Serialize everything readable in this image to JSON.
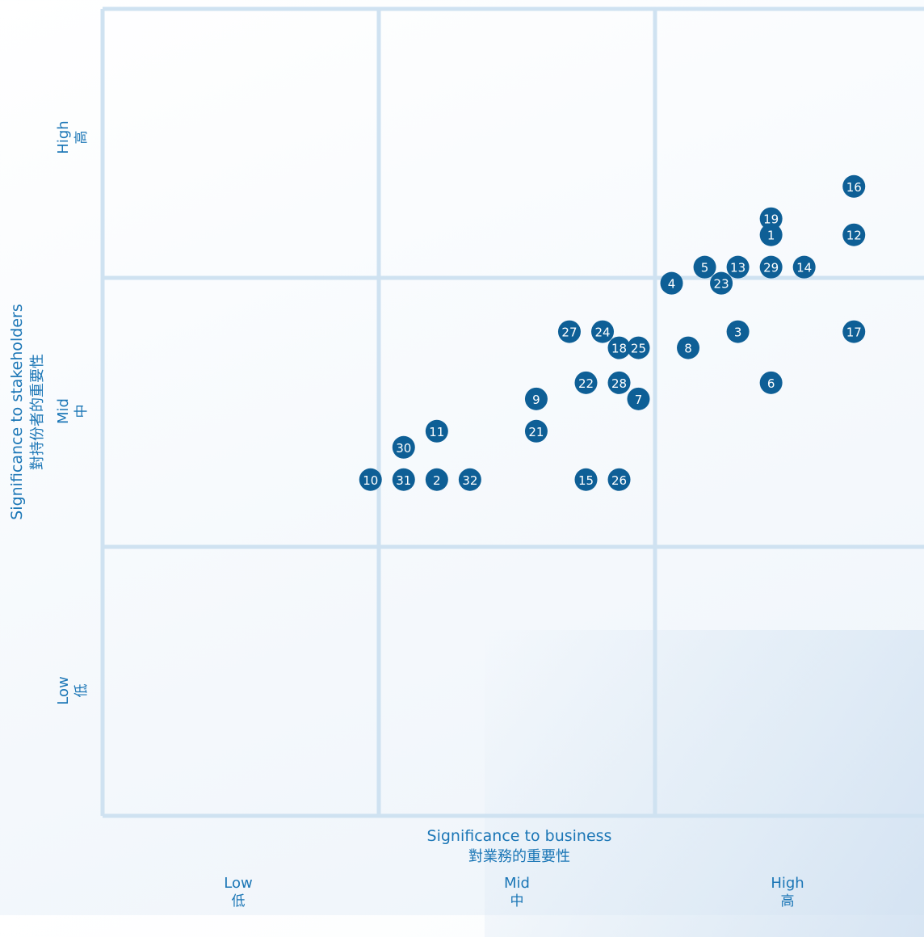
{
  "chart_data": {
    "type": "scatter",
    "xlabel": "Significance to business",
    "xlabel_zh": "對業務的重要性",
    "ylabel": "Significance to stakeholders",
    "ylabel_zh": "對持份者的重要性",
    "xlim": [
      0,
      3
    ],
    "ylim": [
      0,
      3
    ],
    "grid": true,
    "x_ticks": [
      {
        "en": "Low",
        "zh": "低"
      },
      {
        "en": "Mid",
        "zh": "中"
      },
      {
        "en": "High",
        "zh": "高"
      }
    ],
    "y_ticks": [
      {
        "en": "Low",
        "zh": "低"
      },
      {
        "en": "Mid",
        "zh": "中"
      },
      {
        "en": "High",
        "zh": "高"
      }
    ],
    "marker_color": "#0e5f96",
    "grid_color": "#cfe2f1",
    "points": [
      {
        "label": "1",
        "x": 2.42,
        "y": 2.16
      },
      {
        "label": "2",
        "x": 1.21,
        "y": 1.25
      },
      {
        "label": "3",
        "x": 2.3,
        "y": 1.8
      },
      {
        "label": "4",
        "x": 2.06,
        "y": 1.98
      },
      {
        "label": "5",
        "x": 2.18,
        "y": 2.04
      },
      {
        "label": "6",
        "x": 2.42,
        "y": 1.61
      },
      {
        "label": "7",
        "x": 1.94,
        "y": 1.55
      },
      {
        "label": "8",
        "x": 2.12,
        "y": 1.74
      },
      {
        "label": "9",
        "x": 1.57,
        "y": 1.55
      },
      {
        "label": "10",
        "x": 0.97,
        "y": 1.25
      },
      {
        "label": "11",
        "x": 1.21,
        "y": 1.43
      },
      {
        "label": "12",
        "x": 2.72,
        "y": 2.16
      },
      {
        "label": "13",
        "x": 2.3,
        "y": 2.04
      },
      {
        "label": "14",
        "x": 2.54,
        "y": 2.04
      },
      {
        "label": "15",
        "x": 1.75,
        "y": 1.25
      },
      {
        "label": "16",
        "x": 2.72,
        "y": 2.34
      },
      {
        "label": "17",
        "x": 2.72,
        "y": 1.8
      },
      {
        "label": "18",
        "x": 1.87,
        "y": 1.74
      },
      {
        "label": "19",
        "x": 2.42,
        "y": 2.22
      },
      {
        "label": "21",
        "x": 1.57,
        "y": 1.43
      },
      {
        "label": "22",
        "x": 1.75,
        "y": 1.61
      },
      {
        "label": "23",
        "x": 2.24,
        "y": 1.98
      },
      {
        "label": "24",
        "x": 1.81,
        "y": 1.8
      },
      {
        "label": "25",
        "x": 1.94,
        "y": 1.74
      },
      {
        "label": "26",
        "x": 1.87,
        "y": 1.25
      },
      {
        "label": "27",
        "x": 1.69,
        "y": 1.8
      },
      {
        "label": "28",
        "x": 1.87,
        "y": 1.61
      },
      {
        "label": "29",
        "x": 2.42,
        "y": 2.04
      },
      {
        "label": "30",
        "x": 1.09,
        "y": 1.37
      },
      {
        "label": "31",
        "x": 1.09,
        "y": 1.25
      },
      {
        "label": "32",
        "x": 1.33,
        "y": 1.25
      }
    ]
  }
}
